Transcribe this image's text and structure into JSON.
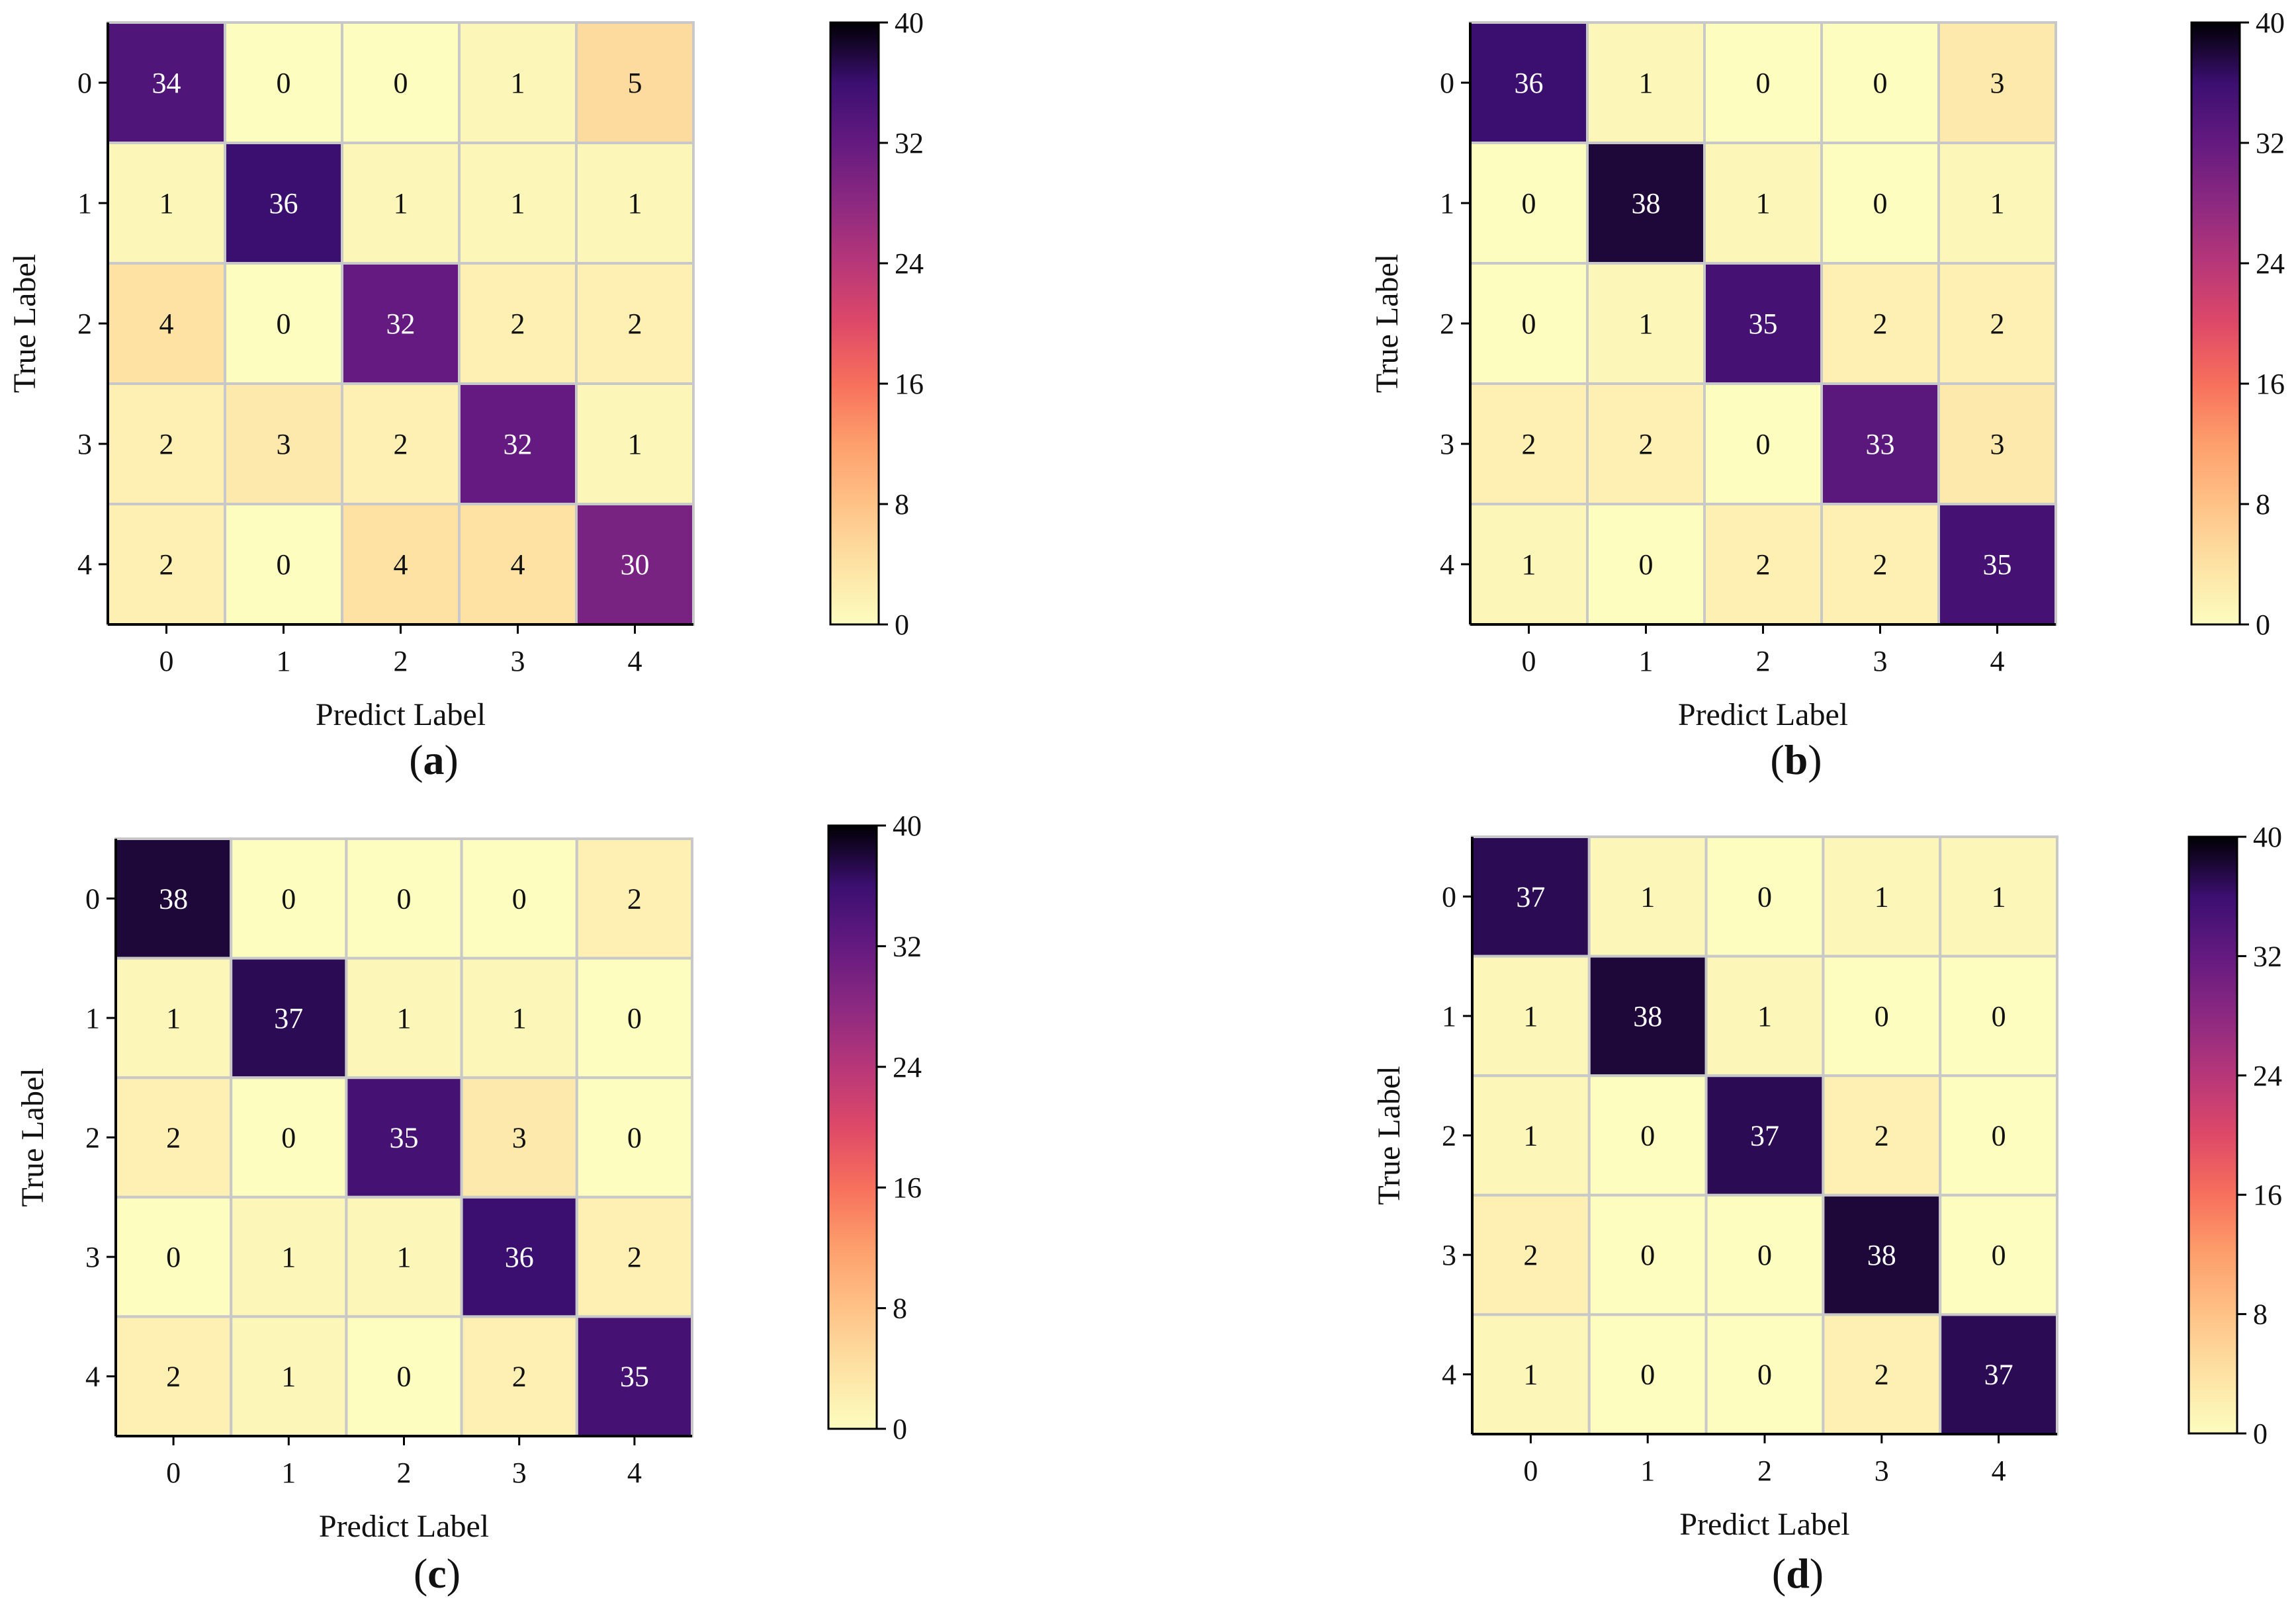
{
  "chart_data": [
    {
      "type": "heatmap",
      "panel_label": "a",
      "xlabel": "Predict Label",
      "ylabel": "True Label",
      "x_categories": [
        "0",
        "1",
        "2",
        "3",
        "4"
      ],
      "y_categories": [
        "0",
        "1",
        "2",
        "3",
        "4"
      ],
      "matrix": [
        [
          34,
          0,
          0,
          1,
          5
        ],
        [
          1,
          36,
          1,
          1,
          1
        ],
        [
          4,
          0,
          32,
          2,
          2
        ],
        [
          2,
          3,
          2,
          32,
          1
        ],
        [
          2,
          0,
          4,
          4,
          30
        ]
      ],
      "colorbar": {
        "range": [
          0,
          40
        ],
        "ticks": [
          0,
          8,
          16,
          24,
          32,
          40
        ],
        "colormap": "magma_r"
      }
    },
    {
      "type": "heatmap",
      "panel_label": "b",
      "xlabel": "Predict Label",
      "ylabel": "True Label",
      "x_categories": [
        "0",
        "1",
        "2",
        "3",
        "4"
      ],
      "y_categories": [
        "0",
        "1",
        "2",
        "3",
        "4"
      ],
      "matrix": [
        [
          36,
          1,
          0,
          0,
          3
        ],
        [
          0,
          38,
          1,
          0,
          1
        ],
        [
          0,
          1,
          35,
          2,
          2
        ],
        [
          2,
          2,
          0,
          33,
          3
        ],
        [
          1,
          0,
          2,
          2,
          35
        ]
      ],
      "colorbar": {
        "range": [
          0,
          40
        ],
        "ticks": [
          0,
          8,
          16,
          24,
          32,
          40
        ],
        "colormap": "magma_r"
      }
    },
    {
      "type": "heatmap",
      "panel_label": "c",
      "xlabel": "Predict Label",
      "ylabel": "True Label",
      "x_categories": [
        "0",
        "1",
        "2",
        "3",
        "4"
      ],
      "y_categories": [
        "0",
        "1",
        "2",
        "3",
        "4"
      ],
      "matrix": [
        [
          38,
          0,
          0,
          0,
          2
        ],
        [
          1,
          37,
          1,
          1,
          0
        ],
        [
          2,
          0,
          35,
          3,
          0
        ],
        [
          0,
          1,
          1,
          36,
          2
        ],
        [
          2,
          1,
          0,
          2,
          35
        ]
      ],
      "colorbar": {
        "range": [
          0,
          40
        ],
        "ticks": [
          0,
          8,
          16,
          24,
          32,
          40
        ],
        "colormap": "magma_r"
      }
    },
    {
      "type": "heatmap",
      "panel_label": "d",
      "xlabel": "Predict Label",
      "ylabel": "True Label",
      "x_categories": [
        "0",
        "1",
        "2",
        "3",
        "4"
      ],
      "y_categories": [
        "0",
        "1",
        "2",
        "3",
        "4"
      ],
      "matrix": [
        [
          37,
          1,
          0,
          1,
          1
        ],
        [
          1,
          38,
          1,
          0,
          0
        ],
        [
          1,
          0,
          37,
          2,
          0
        ],
        [
          2,
          0,
          0,
          38,
          0
        ],
        [
          1,
          0,
          0,
          2,
          37
        ]
      ],
      "colorbar": {
        "range": [
          0,
          40
        ],
        "ticks": [
          0,
          8,
          16,
          24,
          32,
          40
        ],
        "colormap": "magma_r"
      }
    }
  ]
}
